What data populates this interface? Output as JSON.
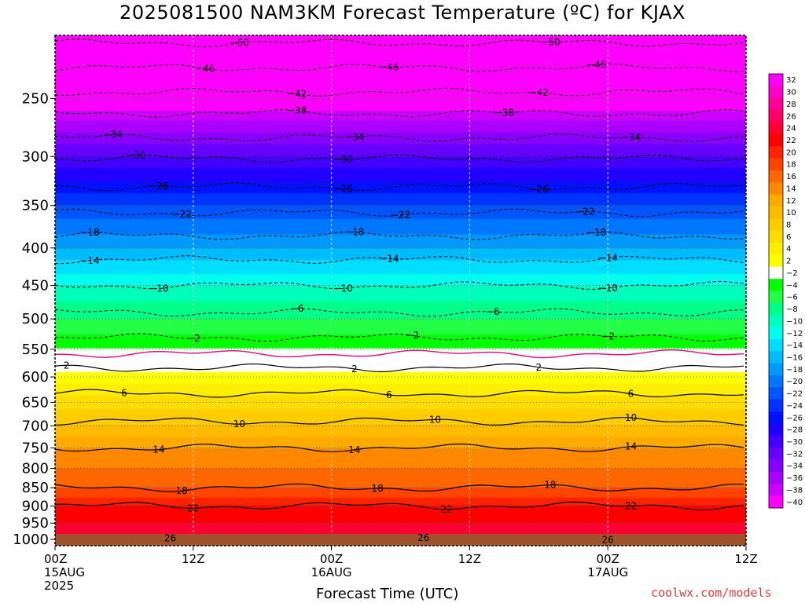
{
  "chart_data": {
    "type": "heatmap",
    "title": "2025081500 NAM3KM Forecast Temperature (ºC) for KJAX",
    "xlabel": "Forecast Time (UTC)",
    "ylabel": "",
    "y_axis": {
      "scale": "log",
      "inverted": true,
      "range": [
        1020,
        205
      ],
      "unit": "hPa"
    },
    "y_ticks": [
      250,
      300,
      350,
      400,
      450,
      500,
      550,
      600,
      650,
      700,
      750,
      800,
      850,
      900,
      950,
      1000
    ],
    "x_axis": {
      "range": [
        0,
        60
      ],
      "unit": "forecast hour"
    },
    "x_ticks": [
      {
        "hour": 0,
        "lines": [
          "00Z",
          "15AUG",
          "2025"
        ]
      },
      {
        "hour": 12,
        "lines": [
          "12Z"
        ]
      },
      {
        "hour": 24,
        "lines": [
          "00Z",
          "16AUG"
        ]
      },
      {
        "hour": 36,
        "lines": [
          "12Z"
        ]
      },
      {
        "hour": 48,
        "lines": [
          "00Z",
          "17AUG"
        ]
      },
      {
        "hour": 60,
        "lines": [
          "12Z"
        ]
      }
    ],
    "grid": true,
    "surface_fill_color": "#a0522d",
    "colorbar": {
      "position": "right",
      "levels": [
        32,
        30,
        28,
        26,
        24,
        22,
        20,
        18,
        16,
        14,
        12,
        10,
        8,
        6,
        4,
        2,
        -2,
        -4,
        -6,
        -8,
        -10,
        -12,
        -14,
        -16,
        -18,
        -20,
        -22,
        -24,
        -26,
        -28,
        -30,
        -32,
        -34,
        -36,
        -38,
        -40
      ],
      "colors": [
        "#ff00ff",
        "#ff00cc",
        "#ff0099",
        "#ff0066",
        "#ff0033",
        "#ff0000",
        "#ff2200",
        "#ff4400",
        "#ff6600",
        "#ff8800",
        "#ffaa00",
        "#ffbb00",
        "#ffcc00",
        "#ffdd00",
        "#ffee00",
        "#ffff00",
        "#ffffff",
        "#00ff00",
        "#22ff44",
        "#00ff88",
        "#00ffbb",
        "#00ffee",
        "#00ddff",
        "#00bbff",
        "#0099ff",
        "#0077ff",
        "#0055ff",
        "#0033ff",
        "#0011ff",
        "#2200ff",
        "#4400ff",
        "#6600ff",
        "#8800ff",
        "#aa00ff",
        "#cc00ff",
        "#ff00ff"
      ]
    },
    "temperature_profile": [
      {
        "p": 1020,
        "t": 27
      },
      {
        "p": 1000,
        "t": 26
      },
      {
        "p": 950,
        "t": 24
      },
      {
        "p": 900,
        "t": 22
      },
      {
        "p": 850,
        "t": 18
      },
      {
        "p": 800,
        "t": 16
      },
      {
        "p": 750,
        "t": 14
      },
      {
        "p": 700,
        "t": 10
      },
      {
        "p": 650,
        "t": 7
      },
      {
        "p": 600,
        "t": 3
      },
      {
        "p": 570,
        "t": 0
      },
      {
        "p": 550,
        "t": -2
      },
      {
        "p": 500,
        "t": -6
      },
      {
        "p": 450,
        "t": -10
      },
      {
        "p": 400,
        "t": -16
      },
      {
        "p": 350,
        "t": -22
      },
      {
        "p": 300,
        "t": -30
      },
      {
        "p": 250,
        "t": -40
      },
      {
        "p": 205,
        "t": -52
      }
    ],
    "contours": [
      {
        "level": 26,
        "p": 1005,
        "style": "solid",
        "labels": [
          {
            "hour": 10,
            "text": "26"
          },
          {
            "hour": 32,
            "text": "26"
          },
          {
            "hour": 48,
            "text": "26"
          }
        ]
      },
      {
        "level": 22,
        "p": 900,
        "style": "solid",
        "labels": [
          {
            "hour": 12,
            "text": "22"
          },
          {
            "hour": 34,
            "text": "22"
          },
          {
            "hour": 50,
            "text": "22"
          }
        ]
      },
      {
        "level": 18,
        "p": 850,
        "style": "solid",
        "labels": [
          {
            "hour": 11,
            "text": "18"
          },
          {
            "hour": 28,
            "text": "18"
          },
          {
            "hour": 43,
            "text": "18"
          }
        ]
      },
      {
        "level": 14,
        "p": 750,
        "style": "solid",
        "labels": [
          {
            "hour": 9,
            "text": "14"
          },
          {
            "hour": 26,
            "text": "14"
          },
          {
            "hour": 50,
            "text": "14"
          }
        ]
      },
      {
        "level": 10,
        "p": 690,
        "style": "solid",
        "labels": [
          {
            "hour": 16,
            "text": "10"
          },
          {
            "hour": 33,
            "text": "10"
          },
          {
            "hour": 50,
            "text": "10"
          }
        ]
      },
      {
        "level": 6,
        "p": 632,
        "style": "solid",
        "labels": [
          {
            "hour": 6,
            "text": "6"
          },
          {
            "hour": 29,
            "text": "6"
          },
          {
            "hour": 50,
            "text": "6"
          }
        ]
      },
      {
        "level": 2,
        "p": 583,
        "style": "solid",
        "labels": [
          {
            "hour": 1,
            "text": "2"
          },
          {
            "hour": 26,
            "text": "2"
          },
          {
            "hour": 42,
            "text": "2"
          }
        ]
      },
      {
        "level": 0,
        "p": 558,
        "style": "magenta",
        "labels": []
      },
      {
        "level": -2,
        "p": 530,
        "style": "dashed",
        "labels": [
          {
            "hour": 12,
            "text": "2"
          },
          {
            "hour": 31,
            "text": "2"
          },
          {
            "hour": 48,
            "text": "2"
          }
        ]
      },
      {
        "level": -6,
        "p": 490,
        "style": "dashed",
        "labels": [
          {
            "hour": 21,
            "text": "6"
          },
          {
            "hour": 38,
            "text": "6"
          }
        ]
      },
      {
        "level": -10,
        "p": 450,
        "style": "dashed",
        "labels": [
          {
            "hour": 9,
            "text": "10"
          },
          {
            "hour": 25,
            "text": "10"
          },
          {
            "hour": 48,
            "text": "10"
          }
        ]
      },
      {
        "level": -14,
        "p": 415,
        "style": "dashed",
        "labels": [
          {
            "hour": 3,
            "text": "14"
          },
          {
            "hour": 29,
            "text": "14"
          },
          {
            "hour": 48,
            "text": "14"
          }
        ]
      },
      {
        "level": -18,
        "p": 385,
        "style": "dashed",
        "labels": [
          {
            "hour": 3,
            "text": "18"
          },
          {
            "hour": 26,
            "text": "18"
          },
          {
            "hour": 47,
            "text": "18"
          }
        ]
      },
      {
        "level": -22,
        "p": 358,
        "style": "dashed",
        "labels": [
          {
            "hour": 11,
            "text": "22"
          },
          {
            "hour": 30,
            "text": "22"
          },
          {
            "hour": 46,
            "text": "22"
          }
        ]
      },
      {
        "level": -26,
        "p": 330,
        "style": "dashed",
        "labels": [
          {
            "hour": 9,
            "text": "26"
          },
          {
            "hour": 25,
            "text": "26"
          },
          {
            "hour": 42,
            "text": "26"
          }
        ]
      },
      {
        "level": -30,
        "p": 302,
        "style": "dashed",
        "labels": [
          {
            "hour": 7,
            "text": "30"
          },
          {
            "hour": 25,
            "text": "30"
          }
        ]
      },
      {
        "level": -34,
        "p": 283,
        "style": "dashed",
        "labels": [
          {
            "hour": 5,
            "text": "34"
          },
          {
            "hour": 26,
            "text": "34"
          },
          {
            "hour": 50,
            "text": "34"
          }
        ]
      },
      {
        "level": -38,
        "p": 262,
        "style": "dashed",
        "labels": [
          {
            "hour": 21,
            "text": "38"
          },
          {
            "hour": 39,
            "text": "38"
          }
        ]
      },
      {
        "level": -42,
        "p": 245,
        "style": "dashed",
        "labels": [
          {
            "hour": 21,
            "text": "42"
          },
          {
            "hour": 42,
            "text": "42"
          }
        ]
      },
      {
        "level": -46,
        "p": 227,
        "style": "dashed",
        "labels": [
          {
            "hour": 13,
            "text": "46"
          },
          {
            "hour": 29,
            "text": "46"
          },
          {
            "hour": 47,
            "text": "46"
          }
        ]
      },
      {
        "level": -50,
        "p": 210,
        "style": "dashed",
        "labels": [
          {
            "hour": 16,
            "text": "50"
          },
          {
            "hour": 43,
            "text": "50"
          }
        ]
      }
    ]
  },
  "watermark": "coolwx.com/models"
}
